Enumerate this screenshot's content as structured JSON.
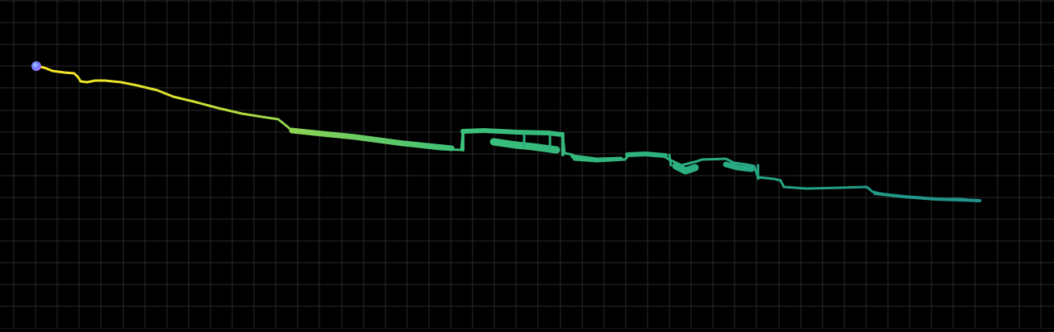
{
  "scene": {
    "type": "trajectory-viewer",
    "background_color": "#000000",
    "grid_color": "#2a2a2a",
    "grid": true
  },
  "trajectory": {
    "colormap": "viridis",
    "color_start": "#fde725",
    "color_mid": "#35b779",
    "color_end": "#21918c",
    "start_marker_colors": [
      "#6b7bff",
      "#c86cff"
    ]
  }
}
